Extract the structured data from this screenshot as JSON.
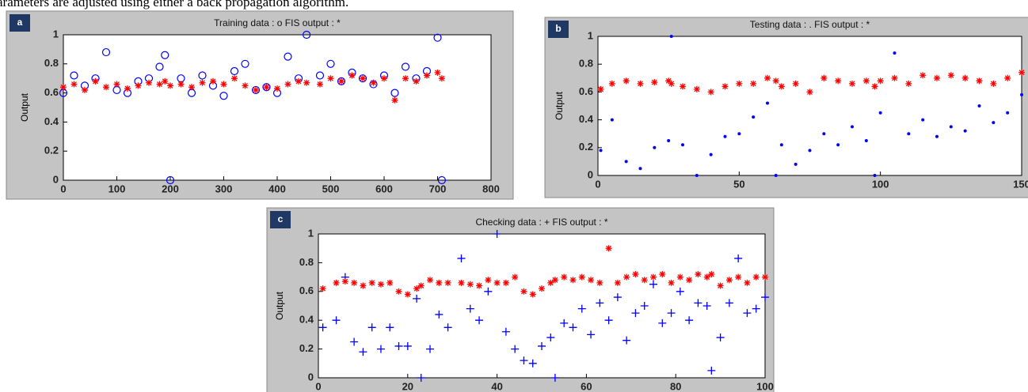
{
  "caption": "arameters are adjusted using either a back propagation algorithm.",
  "chart_data": [
    {
      "type": "scatter",
      "panel_label": "a",
      "title": "Training data : o   FIS output : *",
      "y_label": "Output",
      "x": [
        0,
        20,
        40,
        60,
        80,
        100,
        120,
        140,
        160,
        180,
        190,
        200,
        220,
        240,
        260,
        280,
        300,
        320,
        340,
        360,
        380,
        400,
        420,
        440,
        455,
        480,
        500,
        520,
        540,
        560,
        580,
        600,
        620,
        640,
        660,
        680,
        700,
        708
      ],
      "series": [
        {
          "color": "#0000ff",
          "marker": "o",
          "values": [
            0.6,
            0.72,
            0.65,
            0.7,
            0.88,
            0.62,
            0.6,
            0.68,
            0.7,
            0.78,
            0.86,
            0.0,
            0.7,
            0.6,
            0.72,
            0.65,
            0.58,
            0.75,
            0.8,
            0.62,
            0.64,
            0.6,
            0.85,
            0.7,
            1.0,
            0.72,
            0.8,
            0.68,
            0.74,
            0.7,
            0.66,
            0.72,
            0.6,
            0.78,
            0.7,
            0.75,
            0.98,
            0.0
          ]
        },
        {
          "color": "#ff0000",
          "marker": "*",
          "values": [
            0.64,
            0.66,
            0.62,
            0.68,
            0.64,
            0.66,
            0.63,
            0.65,
            0.67,
            0.66,
            0.68,
            0.65,
            0.66,
            0.64,
            0.67,
            0.68,
            0.66,
            0.7,
            0.65,
            0.62,
            0.64,
            0.63,
            0.66,
            0.68,
            0.67,
            0.66,
            0.7,
            0.68,
            0.72,
            0.7,
            0.67,
            0.7,
            0.55,
            0.7,
            0.68,
            0.72,
            0.74,
            0.7
          ]
        }
      ],
      "xlim": [
        0,
        800
      ],
      "xticks": [
        0,
        100,
        200,
        300,
        400,
        500,
        600,
        700,
        800
      ],
      "ylim": [
        0,
        1
      ],
      "yticks": [
        0,
        0.2,
        0.4,
        0.6,
        0.8,
        1
      ]
    },
    {
      "type": "scatter",
      "panel_label": "b",
      "title": "Testing data : .   FIS output : *",
      "y_label": "Output",
      "x": [
        1,
        5,
        10,
        15,
        20,
        25,
        26,
        30,
        35,
        40,
        45,
        50,
        55,
        60,
        63,
        65,
        70,
        75,
        80,
        85,
        90,
        95,
        98,
        100,
        105,
        110,
        115,
        120,
        125,
        130,
        135,
        140,
        145,
        150
      ],
      "series": [
        {
          "color": "#0000ff",
          "marker": ".",
          "values": [
            0.18,
            0.4,
            0.1,
            0.05,
            0.2,
            0.25,
            1.0,
            0.22,
            0.0,
            0.15,
            0.28,
            0.3,
            0.42,
            0.52,
            0.0,
            0.22,
            0.08,
            0.18,
            0.3,
            0.22,
            0.35,
            0.25,
            0.0,
            0.45,
            0.88,
            0.3,
            0.4,
            0.28,
            0.35,
            0.32,
            0.5,
            0.38,
            0.45,
            0.58
          ]
        },
        {
          "color": "#ff0000",
          "marker": "*",
          "values": [
            0.62,
            0.66,
            0.68,
            0.66,
            0.67,
            0.68,
            0.66,
            0.64,
            0.62,
            0.6,
            0.64,
            0.66,
            0.66,
            0.7,
            0.68,
            0.64,
            0.66,
            0.6,
            0.7,
            0.68,
            0.66,
            0.68,
            0.64,
            0.68,
            0.7,
            0.66,
            0.72,
            0.7,
            0.72,
            0.7,
            0.68,
            0.66,
            0.7,
            0.74
          ]
        }
      ],
      "xlim": [
        0,
        150
      ],
      "xticks": [
        0,
        50,
        100,
        150
      ],
      "ylim": [
        0,
        1
      ],
      "yticks": [
        0,
        0.2,
        0.4,
        0.6,
        0.8,
        1
      ]
    },
    {
      "type": "scatter",
      "panel_label": "c",
      "title": "Checking data : +   FIS output : *",
      "y_label": "Output",
      "x": [
        1,
        4,
        6,
        8,
        10,
        12,
        14,
        16,
        18,
        20,
        22,
        23,
        25,
        27,
        29,
        32,
        34,
        36,
        38,
        40,
        42,
        44,
        46,
        48,
        50,
        52,
        53,
        55,
        57,
        59,
        61,
        63,
        65,
        67,
        69,
        71,
        73,
        75,
        77,
        79,
        81,
        83,
        85,
        87,
        88,
        90,
        92,
        94,
        96,
        98,
        100
      ],
      "series": [
        {
          "color": "#0000ff",
          "marker": "+",
          "values": [
            0.35,
            0.4,
            0.7,
            0.25,
            0.18,
            0.35,
            0.2,
            0.35,
            0.22,
            0.22,
            0.55,
            0.0,
            0.2,
            0.44,
            0.35,
            0.83,
            0.48,
            0.4,
            0.6,
            1.0,
            0.32,
            0.2,
            0.12,
            0.1,
            0.22,
            0.28,
            0.0,
            0.38,
            0.35,
            0.48,
            0.3,
            0.52,
            0.4,
            0.56,
            0.26,
            0.45,
            0.5,
            0.65,
            0.38,
            0.45,
            0.6,
            0.4,
            0.52,
            0.5,
            0.05,
            0.28,
            0.52,
            0.83,
            0.45,
            0.48,
            0.56
          ]
        },
        {
          "color": "#ff0000",
          "marker": "*",
          "values": [
            0.62,
            0.66,
            0.67,
            0.66,
            0.64,
            0.66,
            0.65,
            0.66,
            0.6,
            0.58,
            0.62,
            0.64,
            0.68,
            0.66,
            0.66,
            0.66,
            0.65,
            0.64,
            0.68,
            0.66,
            0.66,
            0.7,
            0.6,
            0.58,
            0.62,
            0.66,
            0.68,
            0.7,
            0.68,
            0.7,
            0.68,
            0.66,
            0.9,
            0.66,
            0.7,
            0.72,
            0.68,
            0.7,
            0.72,
            0.66,
            0.7,
            0.68,
            0.72,
            0.7,
            0.72,
            0.64,
            0.68,
            0.7,
            0.66,
            0.7,
            0.7
          ]
        }
      ],
      "xlim": [
        0,
        100
      ],
      "xticks": [
        0,
        20,
        40,
        60,
        80,
        100
      ],
      "ylim": [
        0,
        1
      ],
      "yticks": [
        0,
        0.2,
        0.4,
        0.6,
        0.8,
        1
      ]
    }
  ]
}
